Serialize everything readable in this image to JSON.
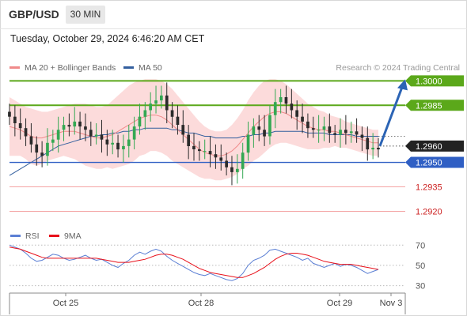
{
  "header": {
    "pair": "GBP/USD",
    "timeframe": "30 MIN"
  },
  "datetime": "Tuesday, October 29, 2024 6:46:20 AM CET",
  "legend": {
    "items": [
      {
        "label": "MA 20 + Bollinger Bands",
        "color": "#f08a8a"
      },
      {
        "label": "MA 50",
        "color": "#335f9e"
      }
    ],
    "credit": "Research © 2024 Trading Central"
  },
  "rsi_legend": {
    "items": [
      {
        "label": "RSI",
        "color": "#5b7fd4"
      },
      {
        "label": "9MA",
        "color": "#e8101a"
      }
    ]
  },
  "colors": {
    "green_level": "#5ba81a",
    "blue_level": "#2f5fc4",
    "red_level": "#cc1f1f",
    "current": "#222222",
    "bollinger_fill": "#fbd5d5",
    "ma20": "#f08a8a",
    "ma50": "#335f9e",
    "candle_up": "#34a853",
    "candle_down": "#2b2b2b",
    "arrow": "#2c64b5"
  },
  "chart_data": [
    {
      "type": "line",
      "subtype": "candlestick",
      "title": "GBP/USD",
      "timeframe": "30 MIN",
      "x_ticks": [
        "Oct 25",
        "Oct 28",
        "Oct 29",
        "Nov 3"
      ],
      "ylim": [
        1.2912,
        1.3005
      ],
      "levels": [
        {
          "value": 1.3,
          "label": "1.3000",
          "style": "resistance",
          "color": "#5ba81a"
        },
        {
          "value": 1.2985,
          "label": "1.2985",
          "style": "resistance",
          "color": "#5ba81a"
        },
        {
          "value": 1.296,
          "label": "1.2960",
          "style": "current",
          "color": "#222222"
        },
        {
          "value": 1.295,
          "label": "1.2950",
          "style": "pivot",
          "color": "#2f5fc4"
        },
        {
          "value": 1.2935,
          "label": "1.2935",
          "style": "support",
          "color": "#cc1f1f"
        },
        {
          "value": 1.292,
          "label": "1.2920",
          "style": "support",
          "color": "#cc1f1f"
        }
      ],
      "close_series": [
        1.2978,
        1.2974,
        1.2971,
        1.2966,
        1.2961,
        1.2956,
        1.2954,
        1.2962,
        1.2964,
        1.297,
        1.2973,
        1.2972,
        1.2975,
        1.2972,
        1.297,
        1.2966,
        1.2967,
        1.2964,
        1.2961,
        1.2962,
        1.2958,
        1.296,
        1.2964,
        1.2972,
        1.2978,
        1.2982,
        1.2986,
        1.2988,
        1.2991,
        1.2982,
        1.2978,
        1.2973,
        1.2967,
        1.296,
        1.2958,
        1.2957,
        1.2957,
        1.2955,
        1.2953,
        1.2951,
        1.2947,
        1.2944,
        1.2946,
        1.2956,
        1.2967,
        1.2972,
        1.297,
        1.2966,
        1.2979,
        1.2987,
        1.299,
        1.2986,
        1.2982,
        1.2978,
        1.2975,
        1.2971,
        1.297,
        1.297,
        1.2972,
        1.2968,
        1.2967,
        1.297,
        1.2968,
        1.2969,
        1.2967,
        1.2965,
        1.2958,
        1.2959,
        1.2958
      ],
      "ma20_series": [
        1.2972,
        1.2971,
        1.297,
        1.2968,
        1.2966,
        1.2965,
        1.2965,
        1.2966,
        1.2967,
        1.2968,
        1.2969,
        1.2969,
        1.2969,
        1.2968,
        1.2967,
        1.2966,
        1.2965,
        1.2965,
        1.2966,
        1.2967,
        1.2969,
        1.2971,
        1.2973,
        1.2975,
        1.2977,
        1.2978,
        1.2979,
        1.2979,
        1.2978,
        1.2976,
        1.2973,
        1.297,
        1.2967,
        1.2964,
        1.2961,
        1.2958,
        1.2956,
        1.2955,
        1.2954,
        1.2954,
        1.2955,
        1.2957,
        1.296,
        1.2964,
        1.2968,
        1.2972,
        1.2975,
        1.2978,
        1.298,
        1.2981,
        1.2981,
        1.298,
        1.2978,
        1.2976,
        1.2974,
        1.2972,
        1.2971,
        1.297,
        1.297,
        1.2969,
        1.2969,
        1.2968,
        1.2967,
        1.2966,
        1.2965,
        1.2964,
        1.2963,
        1.2962,
        1.2962
      ],
      "ma50_series": [
        1.2942,
        1.2944,
        1.2946,
        1.2948,
        1.295,
        1.2952,
        1.2954,
        1.2956,
        1.2958,
        1.296,
        1.2961,
        1.2962,
        1.2963,
        1.2964,
        1.2965,
        1.2966,
        1.2966,
        1.2967,
        1.2967,
        1.2968,
        1.2968,
        1.2969,
        1.2969,
        1.297,
        1.297,
        1.2971,
        1.2971,
        1.2971,
        1.2971,
        1.2971,
        1.297,
        1.297,
        1.2969,
        1.2968,
        1.2968,
        1.2967,
        1.2966,
        1.2966,
        1.2965,
        1.2965,
        1.2965,
        1.2965,
        1.2965,
        1.2966,
        1.2966,
        1.2967,
        1.2967,
        1.2968,
        1.2968,
        1.2969,
        1.2969,
        1.2969,
        1.2969,
        1.2969,
        1.2969,
        1.2968,
        1.2968,
        1.2968,
        1.2968,
        1.2967,
        1.2967,
        1.2967,
        1.2967,
        1.2967,
        1.2966,
        1.2966,
        1.2966,
        1.2966,
        1.2966
      ],
      "bollinger_upper": [
        1.299,
        1.2988,
        1.2986,
        1.2984,
        1.2983,
        1.2982,
        1.2981,
        1.2981,
        1.2982,
        1.2983,
        1.2984,
        1.2985,
        1.2986,
        1.2986,
        1.2986,
        1.2985,
        1.2984,
        1.2984,
        1.2985,
        1.2988,
        1.2991,
        1.2994,
        1.2997,
        1.2999,
        1.3,
        1.3001,
        1.3001,
        1.3001,
        1.3,
        1.2998,
        1.2995,
        1.2991,
        1.2987,
        1.2983,
        1.2979,
        1.2975,
        1.2972,
        1.297,
        1.2969,
        1.2969,
        1.297,
        1.2973,
        1.2977,
        1.2982,
        1.2988,
        1.2993,
        1.2997,
        1.3,
        1.3001,
        1.3001,
        1.3,
        1.2998,
        1.2995,
        1.2992,
        1.2989,
        1.2986,
        1.2984,
        1.2982,
        1.2981,
        1.2979,
        1.2978,
        1.2977,
        1.2975,
        1.2974,
        1.2973,
        1.2972,
        1.2971,
        1.297,
        1.297
      ],
      "bollinger_lower": [
        1.2954,
        1.2954,
        1.2954,
        1.2952,
        1.2949,
        1.2948,
        1.2949,
        1.2951,
        1.2952,
        1.2953,
        1.2954,
        1.2953,
        1.2952,
        1.295,
        1.2948,
        1.2947,
        1.2946,
        1.2946,
        1.2947,
        1.2946,
        1.2947,
        1.2948,
        1.2949,
        1.2951,
        1.2954,
        1.2955,
        1.2957,
        1.2957,
        1.2956,
        1.2954,
        1.2951,
        1.2949,
        1.2947,
        1.2945,
        1.2943,
        1.2941,
        1.294,
        1.294,
        1.2939,
        1.2939,
        1.294,
        1.2941,
        1.2943,
        1.2946,
        1.2948,
        1.2951,
        1.2953,
        1.2956,
        1.2959,
        1.2961,
        1.2962,
        1.2962,
        1.2961,
        1.296,
        1.2959,
        1.2958,
        1.2958,
        1.2958,
        1.2959,
        1.2959,
        1.296,
        1.2959,
        1.2959,
        1.2958,
        1.2957,
        1.2956,
        1.2955,
        1.2954,
        1.2954
      ],
      "projection": {
        "from": 1.296,
        "to": 1.3
      }
    },
    {
      "type": "line",
      "title": "RSI",
      "y_ticks": [
        70,
        50,
        30
      ],
      "ylim": [
        25,
        78
      ],
      "series": [
        {
          "name": "RSI",
          "color": "#5b7fd4",
          "values": [
            70,
            68,
            66,
            62,
            57,
            54,
            55,
            58,
            61,
            60,
            57,
            55,
            56,
            58,
            60,
            57,
            55,
            56,
            53,
            50,
            48,
            52,
            55,
            60,
            63,
            61,
            64,
            66,
            64,
            59,
            55,
            52,
            49,
            46,
            43,
            41,
            40,
            42,
            40,
            38,
            36,
            35,
            37,
            42,
            50,
            55,
            57,
            60,
            65,
            66,
            64,
            62,
            60,
            58,
            55,
            57,
            52,
            50,
            48,
            50,
            52,
            49,
            51,
            50,
            48,
            45,
            42,
            44,
            46
          ]
        },
        {
          "name": "9MA",
          "color": "#e8101a",
          "values": [
            68,
            67,
            66,
            64,
            62,
            60,
            58,
            57,
            57,
            57,
            57,
            57,
            57,
            57,
            57,
            57,
            57,
            56,
            55,
            54,
            53,
            53,
            53,
            54,
            55,
            56,
            58,
            60,
            61,
            61,
            60,
            58,
            56,
            53,
            50,
            47,
            45,
            43,
            42,
            41,
            40,
            39,
            38,
            38,
            40,
            42,
            45,
            48,
            52,
            56,
            59,
            61,
            62,
            62,
            61,
            60,
            58,
            56,
            54,
            53,
            52,
            51,
            51,
            51,
            50,
            49,
            48,
            47,
            46
          ]
        }
      ]
    }
  ]
}
